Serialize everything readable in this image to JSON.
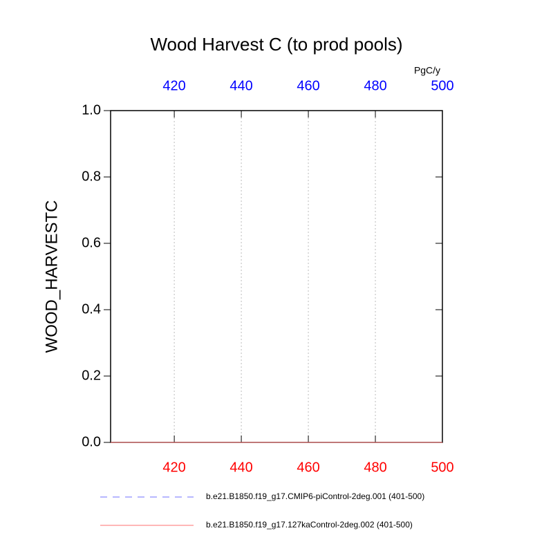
{
  "chart_data": {
    "type": "line",
    "title": "Wood Harvest C (to prod pools)",
    "ylabel": "WOOD_HARVESTC",
    "top_axis_label": "PgC/y",
    "x": [
      401,
      500
    ],
    "series": [
      {
        "name": "b.e21.B1850.f19_g17.CMIP6-piControl-2deg.001 (401-500)",
        "color": "#6f6fff",
        "dash": true,
        "values": [
          0,
          0
        ]
      },
      {
        "name": "b.e21.B1850.f19_g17.127kaControl-2deg.002 (401-500)",
        "color": "#ff6f6f",
        "dash": false,
        "values": [
          0,
          0
        ]
      }
    ],
    "xlim": [
      401,
      500
    ],
    "xticks": [
      420,
      440,
      460,
      480,
      500
    ],
    "top_tick_color": "#0000ff",
    "bottom_tick_color": "#ff0000",
    "ylim": [
      0,
      1
    ],
    "yticks": [
      {
        "value": 0,
        "label": "0.0"
      },
      {
        "value": 0.2,
        "label": "0.2"
      },
      {
        "value": 0.4,
        "label": "0.4"
      },
      {
        "value": 0.6,
        "label": "0.6"
      },
      {
        "value": 0.8,
        "label": "0.8"
      },
      {
        "value": 1,
        "label": "1.0"
      }
    ],
    "grid": true
  }
}
